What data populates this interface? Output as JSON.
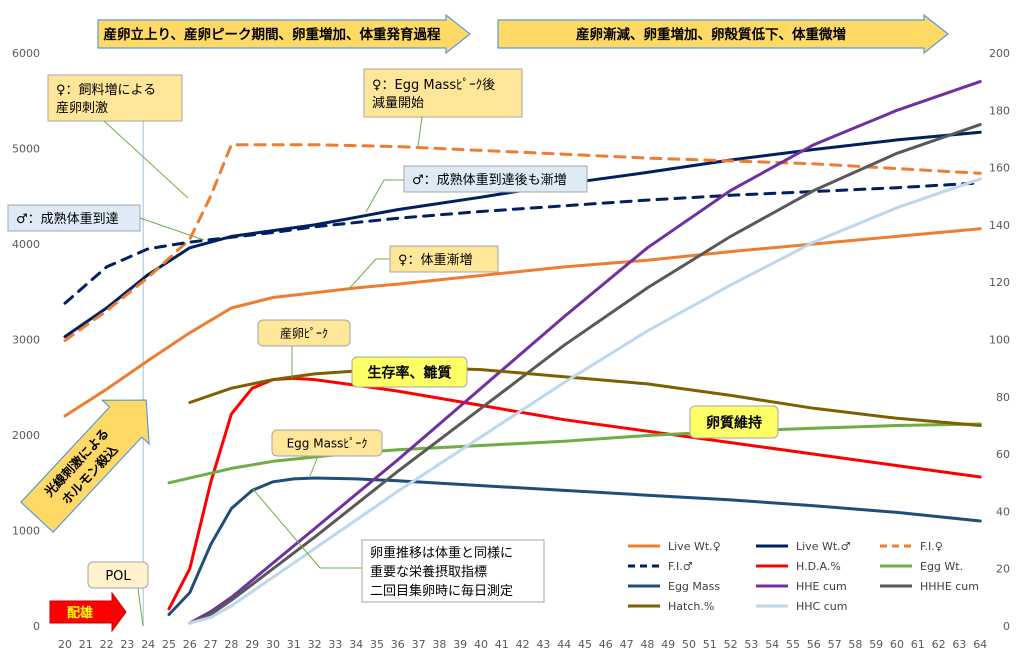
{
  "chart_data": {
    "type": "line",
    "x_ticks": [
      20,
      21,
      22,
      23,
      24,
      25,
      26,
      27,
      28,
      29,
      30,
      31,
      32,
      33,
      34,
      35,
      36,
      37,
      38,
      39,
      40,
      41,
      42,
      43,
      44,
      45,
      46,
      47,
      48,
      49,
      50,
      51,
      52,
      53,
      54,
      55,
      56,
      57,
      58,
      59,
      60,
      61,
      62,
      63,
      64
    ],
    "y_left": {
      "range": [
        0,
        6000
      ],
      "ticks": [
        0,
        1000,
        2000,
        3000,
        4000,
        5000,
        6000
      ]
    },
    "y_right": {
      "range": [
        0,
        200
      ],
      "ticks": [
        0,
        20,
        40,
        60,
        80,
        100,
        120,
        140,
        160,
        180,
        200
      ]
    },
    "pol_week": 24,
    "series": [
      {
        "name": "Live Wt.♀",
        "axis": "left",
        "color": "#ED7D31",
        "dash": false,
        "x": [
          20,
          22,
          24,
          26,
          28,
          30,
          32,
          34,
          36,
          40,
          44,
          48,
          52,
          56,
          60,
          64
        ],
        "y": [
          2200,
          2480,
          2780,
          3070,
          3330,
          3440,
          3490,
          3540,
          3580,
          3670,
          3760,
          3830,
          3920,
          4000,
          4080,
          4160
        ]
      },
      {
        "name": "Live Wt.♂",
        "axis": "left",
        "color": "#002060",
        "dash": false,
        "x": [
          20,
          22,
          24,
          26,
          28,
          30,
          32,
          34,
          36,
          40,
          44,
          48,
          52,
          56,
          60,
          64
        ],
        "y": [
          3030,
          3330,
          3680,
          3960,
          4080,
          4140,
          4200,
          4280,
          4360,
          4490,
          4630,
          4750,
          4880,
          4990,
          5090,
          5170
        ]
      },
      {
        "name": "F.I.♀",
        "axis": "left",
        "color": "#ED7D31",
        "dash": true,
        "x": [
          20,
          22,
          24,
          26,
          27,
          28,
          32,
          36,
          40,
          44,
          48,
          52,
          56,
          60,
          64
        ],
        "y": [
          2990,
          3300,
          3650,
          4050,
          4500,
          5040,
          5040,
          5020,
          4980,
          4940,
          4900,
          4870,
          4840,
          4790,
          4740
        ]
      },
      {
        "name": "F.I.♂",
        "axis": "left",
        "color": "#002060",
        "dash": true,
        "x": [
          20,
          22,
          24,
          26,
          28,
          30,
          32,
          36,
          40,
          44,
          48,
          52,
          56,
          60,
          64
        ],
        "y": [
          3380,
          3760,
          3950,
          4020,
          4070,
          4120,
          4180,
          4270,
          4340,
          4400,
          4460,
          4510,
          4550,
          4590,
          4640
        ]
      },
      {
        "name": "H.D.A.%",
        "axis": "right",
        "color": "#FF0000",
        "dash": false,
        "x": [
          25,
          26,
          27,
          28,
          29,
          30,
          31,
          32,
          34,
          36,
          40,
          44,
          48,
          52,
          56,
          60,
          64
        ],
        "y": [
          6,
          20,
          50,
          74,
          83,
          86,
          86.5,
          86,
          84,
          82,
          77,
          72,
          68,
          64,
          60,
          56,
          52
        ]
      },
      {
        "name": "Egg Wt.",
        "axis": "right",
        "color": "#70AD47",
        "dash": false,
        "x": [
          25,
          28,
          30,
          32,
          34,
          36,
          40,
          44,
          48,
          52,
          56,
          60,
          64
        ],
        "y": [
          50,
          55,
          57.5,
          59,
          60.5,
          61.5,
          63,
          64.5,
          66.5,
          68,
          69,
          70,
          70.5
        ]
      },
      {
        "name": "Egg Mass",
        "axis": "left",
        "color": "#1F4E79",
        "dash": false,
        "x": [
          25,
          26,
          27,
          28,
          29,
          30,
          31,
          32,
          34,
          36,
          40,
          44,
          48,
          52,
          56,
          60,
          64
        ],
        "y": [
          120,
          350,
          850,
          1230,
          1420,
          1510,
          1540,
          1550,
          1540,
          1520,
          1470,
          1420,
          1370,
          1320,
          1260,
          1190,
          1100
        ]
      },
      {
        "name": "HHE cum",
        "axis": "right",
        "color": "#7030A0",
        "dash": false,
        "x": [
          26,
          27,
          28,
          30,
          32,
          36,
          40,
          44,
          48,
          52,
          56,
          60,
          64
        ],
        "y": [
          1,
          5,
          10,
          22,
          34,
          58,
          83,
          108,
          132,
          152,
          168,
          180,
          190
        ]
      },
      {
        "name": "HHHE cum",
        "axis": "right",
        "color": "#595959",
        "dash": false,
        "x": [
          26,
          27,
          28,
          30,
          32,
          36,
          40,
          44,
          48,
          52,
          56,
          60,
          64
        ],
        "y": [
          1,
          4,
          9,
          20,
          31,
          54,
          76,
          98,
          118,
          136,
          152,
          165,
          175
        ]
      },
      {
        "name": "Hatch.%",
        "axis": "right",
        "color": "#7F6000",
        "dash": false,
        "x": [
          26,
          28,
          30,
          32,
          34,
          36,
          38,
          40,
          44,
          48,
          52,
          56,
          60,
          64
        ],
        "y": [
          78,
          83,
          86,
          88,
          89,
          90,
          90,
          89.5,
          87,
          84.5,
          80.5,
          76,
          72.5,
          70
        ]
      },
      {
        "name": "HHC cum",
        "axis": "right",
        "color": "#BDD7EE",
        "dash": false,
        "x": [
          26,
          27,
          28,
          30,
          32,
          36,
          40,
          44,
          48,
          52,
          56,
          60,
          64
        ],
        "y": [
          1,
          3,
          7,
          17,
          27,
          47,
          66,
          85,
          103,
          119,
          134,
          146,
          156
        ]
      }
    ],
    "header_arrows": [
      {
        "text": "産卵立上り、産卵ピーク期間、卵重増加、体重発育過程"
      },
      {
        "text": "産卵漸減、卵重増加、卵殻質低下、体重微増"
      }
    ],
    "annotations": [
      {
        "id": "feed-stim",
        "lines": [
          "♀：飼料増による",
          "産卵刺激"
        ]
      },
      {
        "id": "egg-mass-peak-drop",
        "lines": [
          "♀：Egg Massﾋﾟｰｸ後",
          "減量開始"
        ]
      },
      {
        "id": "male-weight-gain",
        "lines": [
          "♂：成熟体重到達後も漸増"
        ]
      },
      {
        "id": "male-mature",
        "lines": [
          "♂：成熟体重到達"
        ]
      },
      {
        "id": "female-weight",
        "lines": [
          "♀：体重漸増"
        ]
      },
      {
        "id": "lay-peak",
        "lines": [
          "産卵ﾋﾟｰｸ"
        ]
      },
      {
        "id": "survival",
        "lines": [
          "生存率、雛質"
        ]
      },
      {
        "id": "egg-mass-peak",
        "lines": [
          "Egg Massﾋﾟｰｸ"
        ]
      },
      {
        "id": "egg-quality",
        "lines": [
          "卵質維持"
        ]
      },
      {
        "id": "pol",
        "lines": [
          "POL"
        ]
      },
      {
        "id": "egg-weight-note",
        "lines": [
          "卵重推移は体重と同様に",
          "重要な栄養摂取指標",
          "二回目集卵時に毎日測定"
        ]
      },
      {
        "id": "mating",
        "lines": [
          "配雄"
        ]
      },
      {
        "id": "light-stim",
        "lines": [
          "光線刺激による",
          "ホルモン殺込"
        ]
      }
    ],
    "legend_position": "bottom-right",
    "grid": false
  }
}
